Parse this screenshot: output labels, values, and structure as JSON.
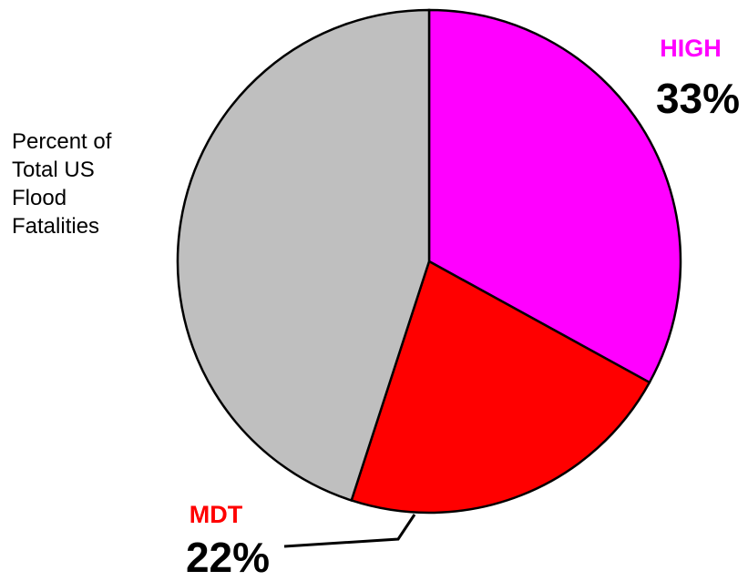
{
  "chart_data": {
    "type": "pie",
    "title": "Percent of\nTotal US\nFlood\nFatalities",
    "categories": [
      "HIGH",
      "MDT",
      null
    ],
    "values": [
      33,
      22,
      45
    ],
    "value_labels": [
      "33%",
      "22%",
      null
    ],
    "colors": [
      "#ff00ff",
      "#ff0000",
      "#bfbfbf"
    ]
  }
}
